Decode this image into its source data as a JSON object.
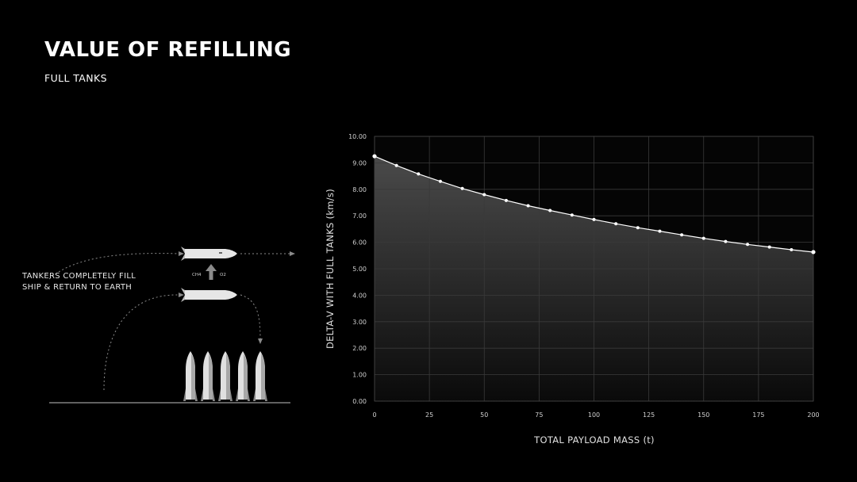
{
  "slide": {
    "title": "VALUE OF REFILLING",
    "subtitle": "FULL TANKS"
  },
  "illustration": {
    "caption_lines": [
      "TANKERS COMPLETELY FILL",
      "SHIP & RETURN TO EARTH"
    ],
    "left_label": "CH4",
    "right_label": "O2",
    "colors": {
      "line": "#8a8a8a",
      "ship": "#e6e6e6",
      "ground": "#9a9a9a"
    }
  },
  "chart_data": {
    "type": "line",
    "title": "",
    "xlabel": "TOTAL PAYLOAD MASS (t)",
    "ylabel": "DELTA-V WITH FULL TANKS (km/s)",
    "xlim": [
      0,
      200
    ],
    "ylim": [
      0,
      10
    ],
    "x_ticks": [
      "0",
      "25",
      "50",
      "75",
      "100",
      "125",
      "150",
      "175",
      "200"
    ],
    "y_ticks": [
      "0.00",
      "1.00",
      "2.00",
      "3.00",
      "4.00",
      "5.00",
      "6.00",
      "7.00",
      "8.00",
      "9.00",
      "10.00"
    ],
    "grid": true,
    "legend": "none",
    "series": [
      {
        "x": [
          0,
          10,
          20,
          30,
          40,
          50,
          60,
          70,
          80,
          90,
          100,
          110,
          120,
          130,
          140,
          150,
          160,
          170,
          180,
          190,
          200
        ],
        "y": [
          9.25,
          8.9,
          8.58,
          8.3,
          8.03,
          7.8,
          7.58,
          7.38,
          7.2,
          7.03,
          6.86,
          6.7,
          6.55,
          6.42,
          6.28,
          6.15,
          6.03,
          5.92,
          5.82,
          5.72,
          5.63
        ]
      }
    ],
    "colors": {
      "line": "#ffffff",
      "grid": "#3a3a3a",
      "fill_top": "#4a4a4a",
      "fill_bottom": "#0a0a0a"
    }
  }
}
